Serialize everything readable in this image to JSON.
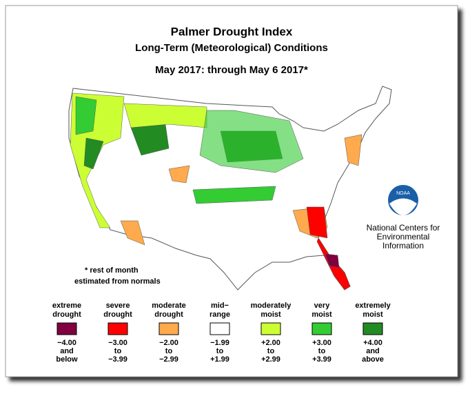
{
  "title": "Palmer Drought Index",
  "subtitle": "Long-Term (Meteorological) Conditions",
  "period": "May 2017: through May  6 2017*",
  "note": [
    "* rest of month",
    "estimated from normals"
  ],
  "credit": {
    "logo": "NOAA",
    "lines": [
      "National Centers for",
      "Environmental",
      "Information"
    ]
  },
  "legend": [
    {
      "name": [
        "extreme",
        "drought"
      ],
      "color": "#800040",
      "range": [
        "−4.00",
        "and",
        "below"
      ]
    },
    {
      "name": [
        "severe",
        "drought"
      ],
      "color": "#ff0000",
      "range": [
        "−3.00",
        "to",
        "−3.99"
      ]
    },
    {
      "name": [
        "moderate",
        "drought"
      ],
      "color": "#ffaa4c",
      "range": [
        "−2.00",
        "to",
        "−2.99"
      ]
    },
    {
      "name": [
        "mid−",
        "range"
      ],
      "color": "#ffffff",
      "range": [
        "−1.99",
        "to",
        "+1.99"
      ]
    },
    {
      "name": [
        "moderately",
        "moist"
      ],
      "color": "#ccff33",
      "range": [
        "+2.00",
        "to",
        "+2.99"
      ]
    },
    {
      "name": [
        "very",
        "moist"
      ],
      "color": "#33cc33",
      "range": [
        "+3.00",
        "to",
        "+3.99"
      ]
    },
    {
      "name": [
        "extremely",
        "moist"
      ],
      "color": "#228b22",
      "range": [
        "+4.00",
        "and",
        "above"
      ]
    }
  ]
}
